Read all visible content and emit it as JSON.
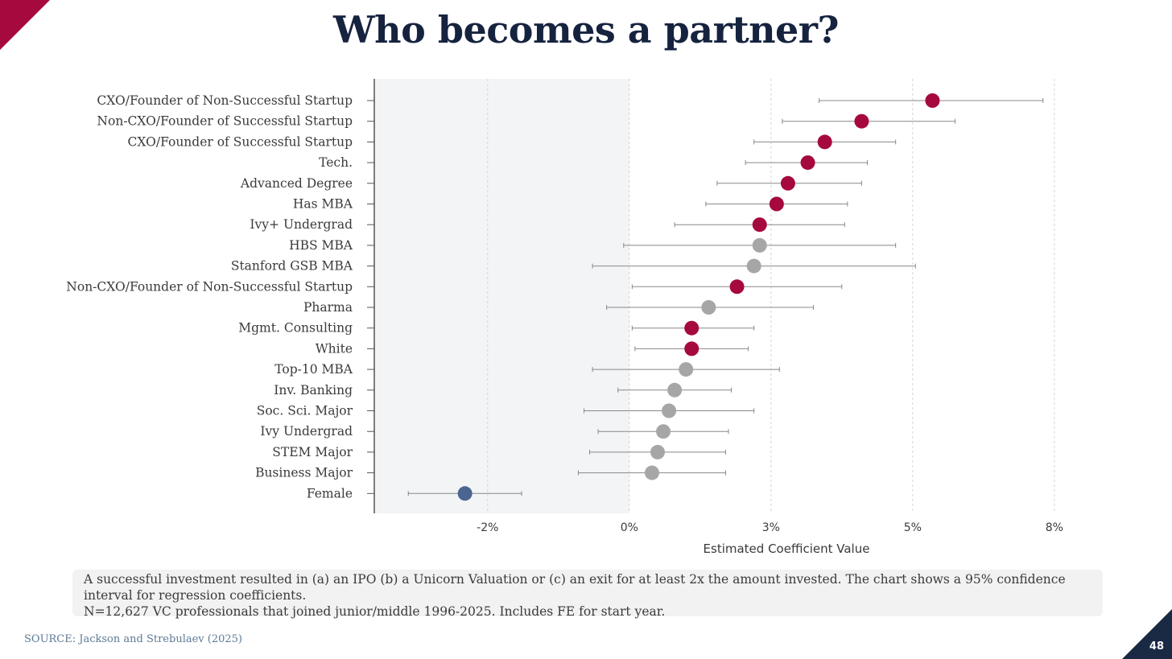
{
  "title": "Who becomes a partner?",
  "page_number": "48",
  "colors": {
    "significant_positive": "#a6093d",
    "not_significant": "#a6a6a6",
    "significant_negative": "#4a6590",
    "title": "#16233f"
  },
  "note": {
    "line1": "A successful investment resulted in (a) an IPO (b) a Unicorn Valuation or (c) an exit for at least 2x the amount invested. The chart shows a 95% confidence interval for regression coefficients.",
    "line2": "N=12,627 VC professionals that joined junior/middle 1996-2025. Includes FE for start year."
  },
  "source": "SOURCE: Jackson and Strebulaev (2025)",
  "chart_data": {
    "type": "scatter",
    "subtype": "coefficient-plot",
    "xlabel": "Estimated Coefficient Value",
    "xlim": [
      -4.5,
      8.0
    ],
    "xticks": [
      -2.5,
      0.0,
      2.5,
      5.0,
      7.5
    ],
    "xtick_labels": [
      "-2%",
      "0%",
      "3%",
      "5%",
      "8%"
    ],
    "shaded_negative_region": true,
    "grid": "vertical dashed",
    "points": [
      {
        "label": "CXO/Founder of Non-Successful Startup",
        "value": 5.35,
        "lo": 3.35,
        "hi": 7.3,
        "group": "significant_positive"
      },
      {
        "label": "Non-CXO/Founder of Successful Startup",
        "value": 4.1,
        "lo": 2.7,
        "hi": 5.75,
        "group": "significant_positive"
      },
      {
        "label": "CXO/Founder of Successful Startup",
        "value": 3.45,
        "lo": 2.2,
        "hi": 4.7,
        "group": "significant_positive"
      },
      {
        "label": "Tech.",
        "value": 3.15,
        "lo": 2.05,
        "hi": 4.2,
        "group": "significant_positive"
      },
      {
        "label": "Advanced Degree",
        "value": 2.8,
        "lo": 1.55,
        "hi": 4.1,
        "group": "significant_positive"
      },
      {
        "label": "Has MBA",
        "value": 2.6,
        "lo": 1.35,
        "hi": 3.85,
        "group": "significant_positive"
      },
      {
        "label": "Ivy+ Undergrad",
        "value": 2.3,
        "lo": 0.8,
        "hi": 3.8,
        "group": "significant_positive"
      },
      {
        "label": "HBS MBA",
        "value": 2.3,
        "lo": -0.1,
        "hi": 4.7,
        "group": "not_significant"
      },
      {
        "label": "Stanford GSB MBA",
        "value": 2.2,
        "lo": -0.65,
        "hi": 5.05,
        "group": "not_significant"
      },
      {
        "label": "Non-CXO/Founder of Non-Successful Startup",
        "value": 1.9,
        "lo": 0.05,
        "hi": 3.75,
        "group": "significant_positive"
      },
      {
        "label": "Pharma",
        "value": 1.4,
        "lo": -0.4,
        "hi": 3.25,
        "group": "not_significant"
      },
      {
        "label": "Mgmt. Consulting",
        "value": 1.1,
        "lo": 0.05,
        "hi": 2.2,
        "group": "significant_positive"
      },
      {
        "label": "White",
        "value": 1.1,
        "lo": 0.1,
        "hi": 2.1,
        "group": "significant_positive"
      },
      {
        "label": "Top-10 MBA",
        "value": 1.0,
        "lo": -0.65,
        "hi": 2.65,
        "group": "not_significant"
      },
      {
        "label": "Inv. Banking",
        "value": 0.8,
        "lo": -0.2,
        "hi": 1.8,
        "group": "not_significant"
      },
      {
        "label": "Soc. Sci. Major",
        "value": 0.7,
        "lo": -0.8,
        "hi": 2.2,
        "group": "not_significant"
      },
      {
        "label": "Ivy Undergrad",
        "value": 0.6,
        "lo": -0.55,
        "hi": 1.75,
        "group": "not_significant"
      },
      {
        "label": "STEM Major",
        "value": 0.5,
        "lo": -0.7,
        "hi": 1.7,
        "group": "not_significant"
      },
      {
        "label": "Business Major",
        "value": 0.4,
        "lo": -0.9,
        "hi": 1.7,
        "group": "not_significant"
      },
      {
        "label": "Female",
        "value": -2.9,
        "lo": -3.9,
        "hi": -1.9,
        "group": "significant_negative"
      }
    ]
  }
}
